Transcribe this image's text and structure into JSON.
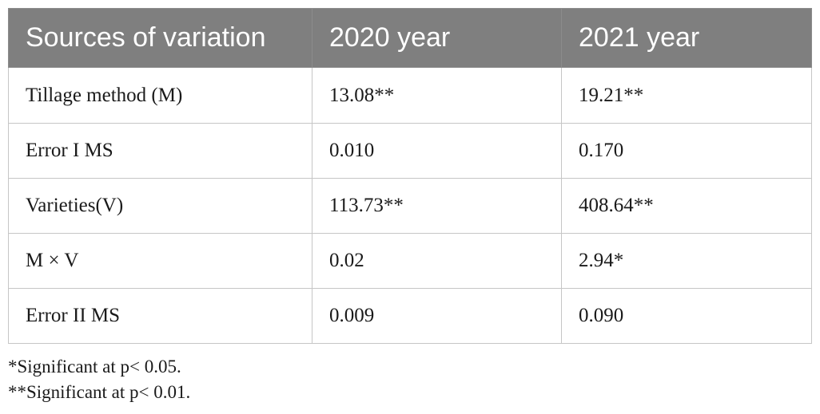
{
  "table": {
    "headers": [
      "Sources of variation",
      "2020 year",
      "2021 year"
    ],
    "rows": [
      [
        "Tillage method (M)",
        "13.08**",
        "19.21**"
      ],
      [
        "Error I MS",
        "0.010",
        "0.170"
      ],
      [
        "Varieties(V)",
        "113.73**",
        "408.64**"
      ],
      [
        "M × V",
        "0.02",
        "2.94*"
      ],
      [
        "Error II MS",
        "0.009",
        "0.090"
      ]
    ]
  },
  "footnotes": [
    "*Significant at p< 0.05.",
    "**Significant at p< 0.01."
  ],
  "colors": {
    "header_background": "#7f7f7f",
    "header_text": "#ffffff",
    "grid_lines": "#c6c6c6"
  }
}
